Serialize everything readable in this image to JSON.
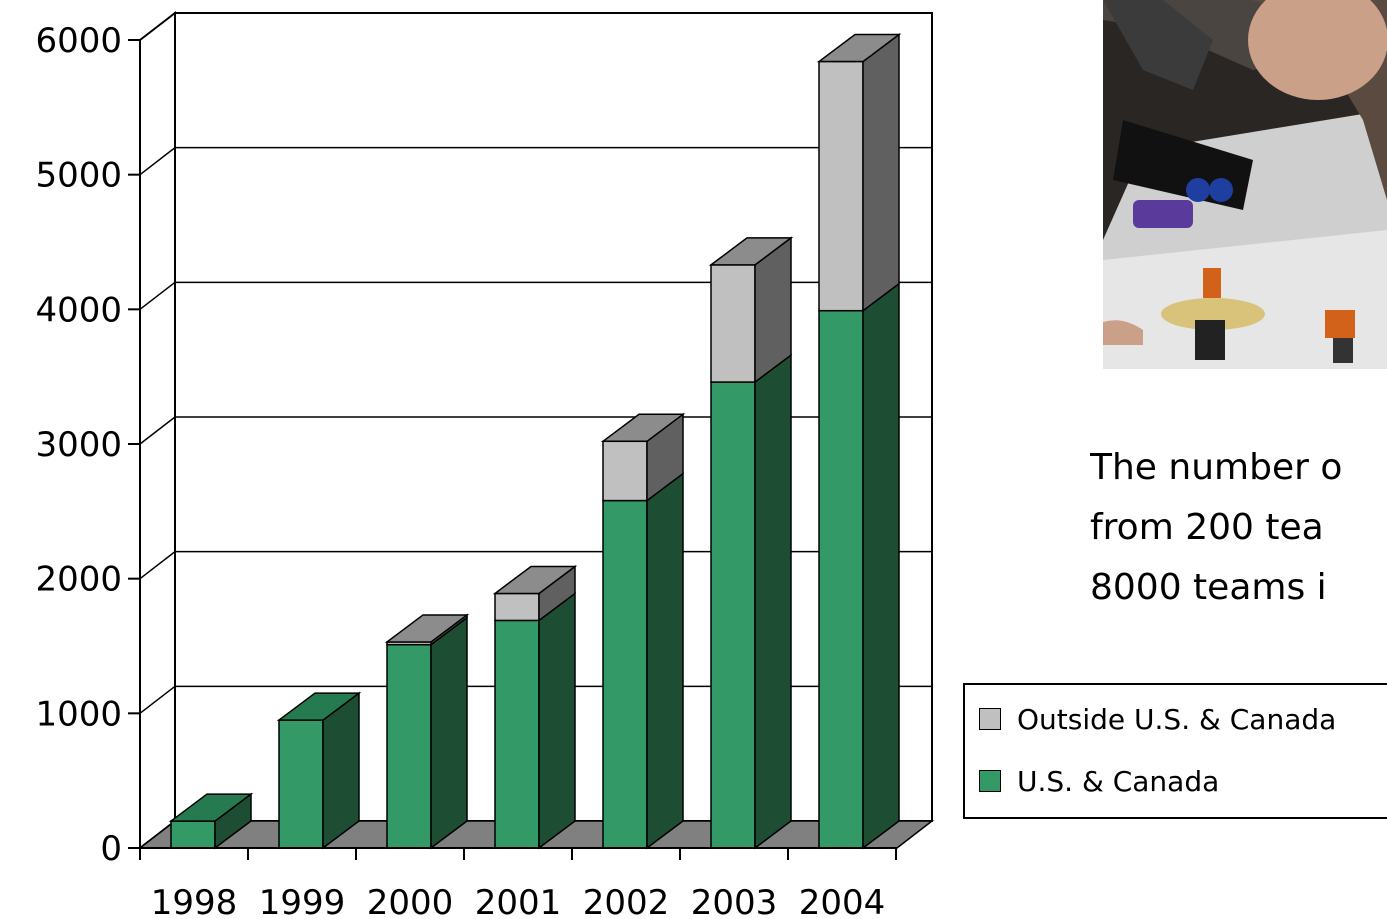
{
  "chart_data": {
    "type": "bar",
    "stacked": true,
    "three_d": true,
    "categories": [
      "1998",
      "1999",
      "2000",
      "2001",
      "2002",
      "2003",
      "2004"
    ],
    "series": [
      {
        "name": "U.S. & Canada",
        "values": [
          200,
          950,
          1510,
          1690,
          2580,
          3460,
          3990
        ]
      },
      {
        "name": "Outside U.S. & Canada",
        "values": [
          0,
          0,
          20,
          200,
          440,
          870,
          1850
        ]
      }
    ],
    "y_ticks": [
      "0",
      "1000",
      "2000",
      "3000",
      "4000",
      "5000",
      "6000"
    ],
    "ylim": [
      0,
      6000
    ],
    "grid": true,
    "legend_position": "right"
  },
  "colors": {
    "us_front": "#339966",
    "us_side": "#1d4d33",
    "us_top": "#267a4f",
    "out_front": "#c0c0c0",
    "out_side": "#606060",
    "out_top": "#8c8c8c",
    "floor": "#808080"
  },
  "legend": {
    "items": [
      {
        "label": "Outside U.S. & Canada",
        "color": "#c0c0c0"
      },
      {
        "label": "U.S. & Canada",
        "color": "#339966"
      }
    ]
  },
  "caption": {
    "line1": "The number o",
    "line2": "from 200 tea",
    "line3": "8000 teams i"
  },
  "photo": {
    "icon": "robot-competition-photo"
  }
}
